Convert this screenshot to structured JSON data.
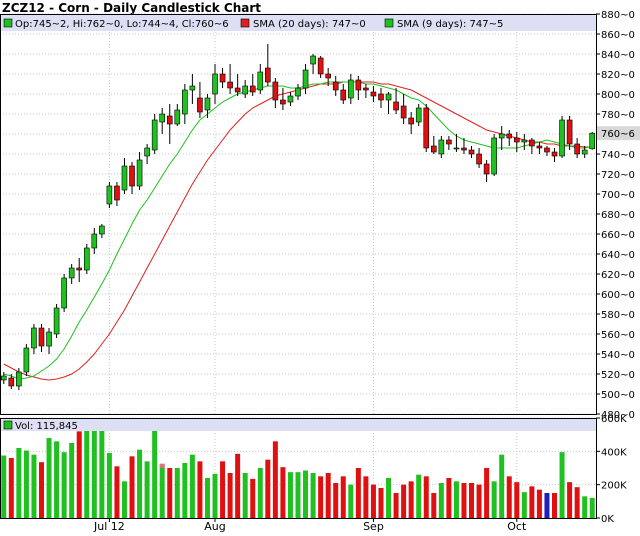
{
  "title": "ZCZ12 - Corn - Daily Candlestick Chart",
  "legend": {
    "ohlc": "Op:745~2, Hi:762~0, Lo:744~4, Cl:760~6",
    "sma20": "SMA (20 days): 747~0",
    "sma9": "SMA (9 days): 747~5",
    "volume": "Vol: 115,845"
  },
  "colors": {
    "up": "#20c020",
    "down": "#e01010",
    "sma20": "#e02020",
    "sma9": "#20c020",
    "legend_bg": "#dde0f4",
    "grid": "#c8c8c8",
    "price_marker": "#d8d8d8",
    "volume_special": "#2020c0",
    "volume_marker": "#e07080"
  },
  "chart_data": [
    {
      "type": "candlestick",
      "yaxis_labels": [
        "880~0",
        "860~0",
        "840~0",
        "820~0",
        "800~0",
        "780~0",
        "760~0",
        "740~0",
        "720~0",
        "700~0",
        "680~0",
        "660~0",
        "640~0",
        "620~0",
        "600~0",
        "580~0",
        "560~0",
        "540~0",
        "520~0",
        "500~0",
        "480~0"
      ],
      "ylim": [
        480,
        880
      ],
      "x_labels": [
        {
          "label": "Jul 12",
          "index": 14
        },
        {
          "label": "Aug",
          "index": 28
        },
        {
          "label": "Sep",
          "index": 49
        },
        {
          "label": "Oct",
          "index": 68
        }
      ],
      "last_price_label": "760~6",
      "last_price": 760.8,
      "candles": [
        [
          514,
          522,
          510,
          518
        ],
        [
          516,
          520,
          505,
          508
        ],
        [
          508,
          526,
          504,
          522
        ],
        [
          522,
          550,
          518,
          546
        ],
        [
          546,
          570,
          540,
          566
        ],
        [
          566,
          570,
          542,
          548
        ],
        [
          548,
          566,
          540,
          562
        ],
        [
          560,
          590,
          556,
          586
        ],
        [
          586,
          620,
          582,
          616
        ],
        [
          616,
          630,
          610,
          626
        ],
        [
          626,
          636,
          612,
          624
        ],
        [
          624,
          650,
          620,
          646
        ],
        [
          646,
          666,
          640,
          660
        ],
        [
          660,
          670,
          656,
          668
        ],
        [
          690,
          712,
          686,
          708
        ],
        [
          708,
          712,
          688,
          694
        ],
        [
          704,
          736,
          700,
          728
        ],
        [
          728,
          732,
          700,
          708
        ],
        [
          708,
          742,
          704,
          734
        ],
        [
          738,
          750,
          730,
          746
        ],
        [
          744,
          780,
          740,
          774
        ],
        [
          772,
          786,
          760,
          780
        ],
        [
          778,
          790,
          750,
          770
        ],
        [
          770,
          790,
          768,
          784
        ],
        [
          780,
          810,
          770,
          804
        ],
        [
          804,
          820,
          790,
          808
        ],
        [
          796,
          812,
          776,
          782
        ],
        [
          784,
          800,
          776,
          796
        ],
        [
          800,
          830,
          790,
          820
        ],
        [
          820,
          826,
          806,
          812
        ],
        [
          812,
          830,
          800,
          806
        ],
        [
          806,
          820,
          798,
          802
        ],
        [
          800,
          814,
          796,
          808
        ],
        [
          808,
          820,
          798,
          802
        ],
        [
          804,
          830,
          800,
          822
        ],
        [
          826,
          850,
          808,
          812
        ],
        [
          812,
          816,
          786,
          794
        ],
        [
          794,
          806,
          784,
          790
        ],
        [
          792,
          802,
          788,
          798
        ],
        [
          798,
          810,
          794,
          806
        ],
        [
          806,
          830,
          800,
          824
        ],
        [
          830,
          840,
          820,
          838
        ],
        [
          836,
          838,
          816,
          820
        ],
        [
          820,
          826,
          808,
          816
        ],
        [
          812,
          818,
          798,
          804
        ],
        [
          804,
          810,
          790,
          794
        ],
        [
          796,
          820,
          790,
          814
        ],
        [
          814,
          818,
          794,
          804
        ],
        [
          806,
          810,
          796,
          804
        ],
        [
          802,
          808,
          792,
          798
        ],
        [
          800,
          806,
          786,
          794
        ],
        [
          794,
          802,
          780,
          800
        ],
        [
          792,
          806,
          780,
          784
        ],
        [
          788,
          800,
          770,
          776
        ],
        [
          776,
          782,
          760,
          770
        ],
        [
          772,
          790,
          768,
          786
        ],
        [
          786,
          790,
          742,
          746
        ],
        [
          748,
          758,
          740,
          742
        ],
        [
          740,
          758,
          736,
          754
        ],
        [
          754,
          758,
          744,
          750
        ],
        [
          746,
          760,
          742,
          746
        ],
        [
          746,
          756,
          740,
          744
        ],
        [
          744,
          748,
          736,
          740
        ],
        [
          740,
          746,
          726,
          730
        ],
        [
          730,
          734,
          712,
          720
        ],
        [
          720,
          760,
          718,
          756
        ],
        [
          756,
          768,
          744,
          760
        ],
        [
          760,
          764,
          748,
          756
        ],
        [
          756,
          762,
          742,
          752
        ],
        [
          752,
          760,
          744,
          754
        ],
        [
          754,
          756,
          740,
          748
        ],
        [
          748,
          752,
          740,
          746
        ],
        [
          746,
          748,
          738,
          742
        ],
        [
          742,
          746,
          732,
          738
        ],
        [
          738,
          778,
          736,
          774
        ],
        [
          774,
          778,
          744,
          750
        ],
        [
          750,
          756,
          736,
          740
        ],
        [
          740,
          748,
          736,
          744
        ],
        [
          745.2,
          762,
          744.4,
          760.8
        ]
      ],
      "sma9": [
        520,
        518,
        515,
        516,
        518,
        523,
        528,
        535,
        545,
        558,
        572,
        584,
        597,
        610,
        624,
        640,
        655,
        670,
        684,
        694,
        706,
        718,
        730,
        740,
        752,
        764,
        774,
        780,
        786,
        792,
        796,
        800,
        802,
        804,
        806,
        808,
        808,
        808,
        806,
        806,
        808,
        810,
        810,
        812,
        812,
        812,
        812,
        812,
        810,
        810,
        808,
        806,
        804,
        800,
        796,
        794,
        788,
        780,
        772,
        764,
        758,
        754,
        752,
        750,
        748,
        746,
        746,
        746,
        746,
        748,
        750,
        752,
        754,
        752,
        750,
        748,
        746,
        746,
        747.5
      ],
      "sma20": [
        530,
        526,
        522,
        519,
        517,
        515,
        514,
        515,
        517,
        520,
        525,
        532,
        540,
        550,
        560,
        572,
        584,
        598,
        612,
        626,
        640,
        654,
        668,
        682,
        696,
        710,
        722,
        734,
        744,
        754,
        764,
        772,
        780,
        786,
        790,
        794,
        798,
        800,
        802,
        804,
        806,
        808,
        810,
        810,
        810,
        812,
        812,
        812,
        812,
        812,
        810,
        810,
        808,
        806,
        804,
        800,
        796,
        792,
        788,
        784,
        780,
        776,
        772,
        768,
        764,
        762,
        760,
        758,
        756,
        754,
        752,
        752,
        750,
        750,
        748,
        748,
        748,
        747,
        747
      ],
      "volume": {
        "ylim": [
          0,
          600000
        ],
        "yaxis_labels": [
          "600K",
          "400K",
          "200K",
          "0K"
        ],
        "values": [
          375000,
          360000,
          420000,
          405000,
          380000,
          335000,
          480000,
          460000,
          395000,
          450000,
          520000,
          560000,
          540000,
          580000,
          390000,
          310000,
          220000,
          370000,
          410000,
          340000,
          560000,
          320000,
          300000,
          300000,
          330000,
          380000,
          340000,
          240000,
          265000,
          340000,
          270000,
          385000,
          270000,
          235000,
          300000,
          350000,
          460000,
          305000,
          275000,
          275000,
          285000,
          270000,
          250000,
          270000,
          210000,
          250000,
          200000,
          300000,
          250000,
          200000,
          180000,
          240000,
          150000,
          200000,
          220000,
          260000,
          250000,
          150000,
          210000,
          240000,
          220000,
          210000,
          210000,
          200000,
          300000,
          220000,
          380000,
          250000,
          215000,
          155000,
          190000,
          170000,
          150000,
          150000,
          395000,
          215000,
          185000,
          130000,
          120000
        ],
        "special_blue_index": 72,
        "marker_index": 21
      }
    }
  ]
}
